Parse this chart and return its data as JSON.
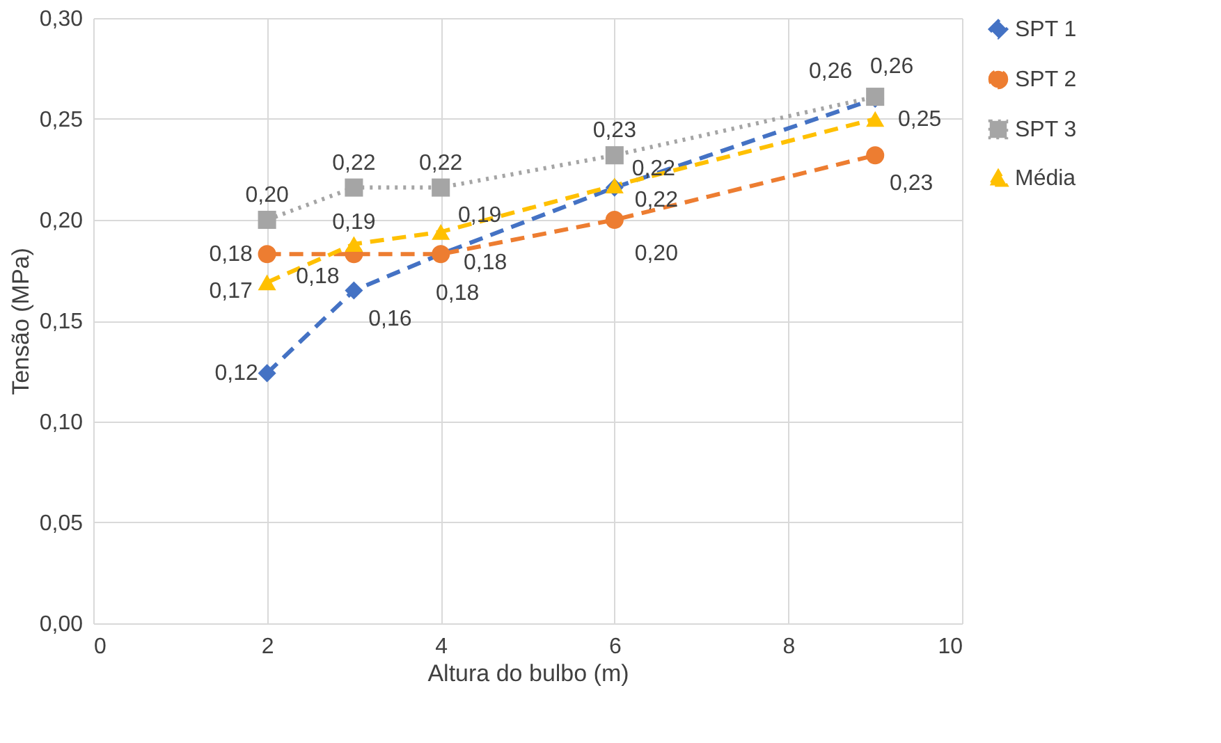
{
  "chart_data": {
    "type": "line",
    "xlabel": "Altura do bulbo (m)",
    "ylabel": "Tensão (MPa)",
    "x": [
      2,
      3,
      4,
      6,
      9
    ],
    "xlim": [
      0,
      10
    ],
    "xticks": [
      {
        "value": 0,
        "label": "0"
      },
      {
        "value": 2,
        "label": "2"
      },
      {
        "value": 4,
        "label": "4"
      },
      {
        "value": 6,
        "label": "6"
      },
      {
        "value": 8,
        "label": "8"
      },
      {
        "value": 10,
        "label": "10"
      }
    ],
    "ylim": [
      0,
      0.3
    ],
    "yticks": [
      {
        "value": 0,
        "label": "0,00"
      },
      {
        "value": 0.05,
        "label": "0,05"
      },
      {
        "value": 0.1,
        "label": "0,10"
      },
      {
        "value": 0.15,
        "label": "0,15"
      },
      {
        "value": 0.2,
        "label": "0,20"
      },
      {
        "value": 0.25,
        "label": "0,25"
      },
      {
        "value": 0.3,
        "label": "0,30"
      }
    ],
    "grid": true,
    "legend": "right",
    "series": [
      {
        "name": "SPT 1",
        "color": "#4472c4",
        "marker": "diamond",
        "line_style": "dashed",
        "values": [
          0.124,
          0.165,
          0.183,
          0.216,
          0.26
        ],
        "value_labels": [
          "0,12",
          "0,16",
          "0,18",
          "0,22",
          "0,26"
        ]
      },
      {
        "name": "SPT 2",
        "color": "#ed7d31",
        "marker": "circle",
        "line_style": "dashed",
        "values": [
          0.183,
          0.183,
          0.183,
          0.2,
          0.232
        ],
        "value_labels": [
          "0,18",
          "0,18",
          "0,18",
          "0,20",
          "0,23"
        ]
      },
      {
        "name": "SPT 3",
        "color": "#a5a5a5",
        "marker": "square",
        "line_style": "dotted",
        "values": [
          0.2,
          0.216,
          0.216,
          0.232,
          0.261
        ],
        "value_labels": [
          "0,20",
          "0,22",
          "0,22",
          "0,23",
          "0,26"
        ]
      },
      {
        "name": "Média",
        "color": "#ffc000",
        "marker": "triangle",
        "line_style": "dashed",
        "values": [
          0.169,
          0.188,
          0.194,
          0.217,
          0.25
        ],
        "value_labels": [
          "0,17",
          "0,19",
          "0,19",
          "0,22",
          "0,25"
        ]
      }
    ]
  }
}
